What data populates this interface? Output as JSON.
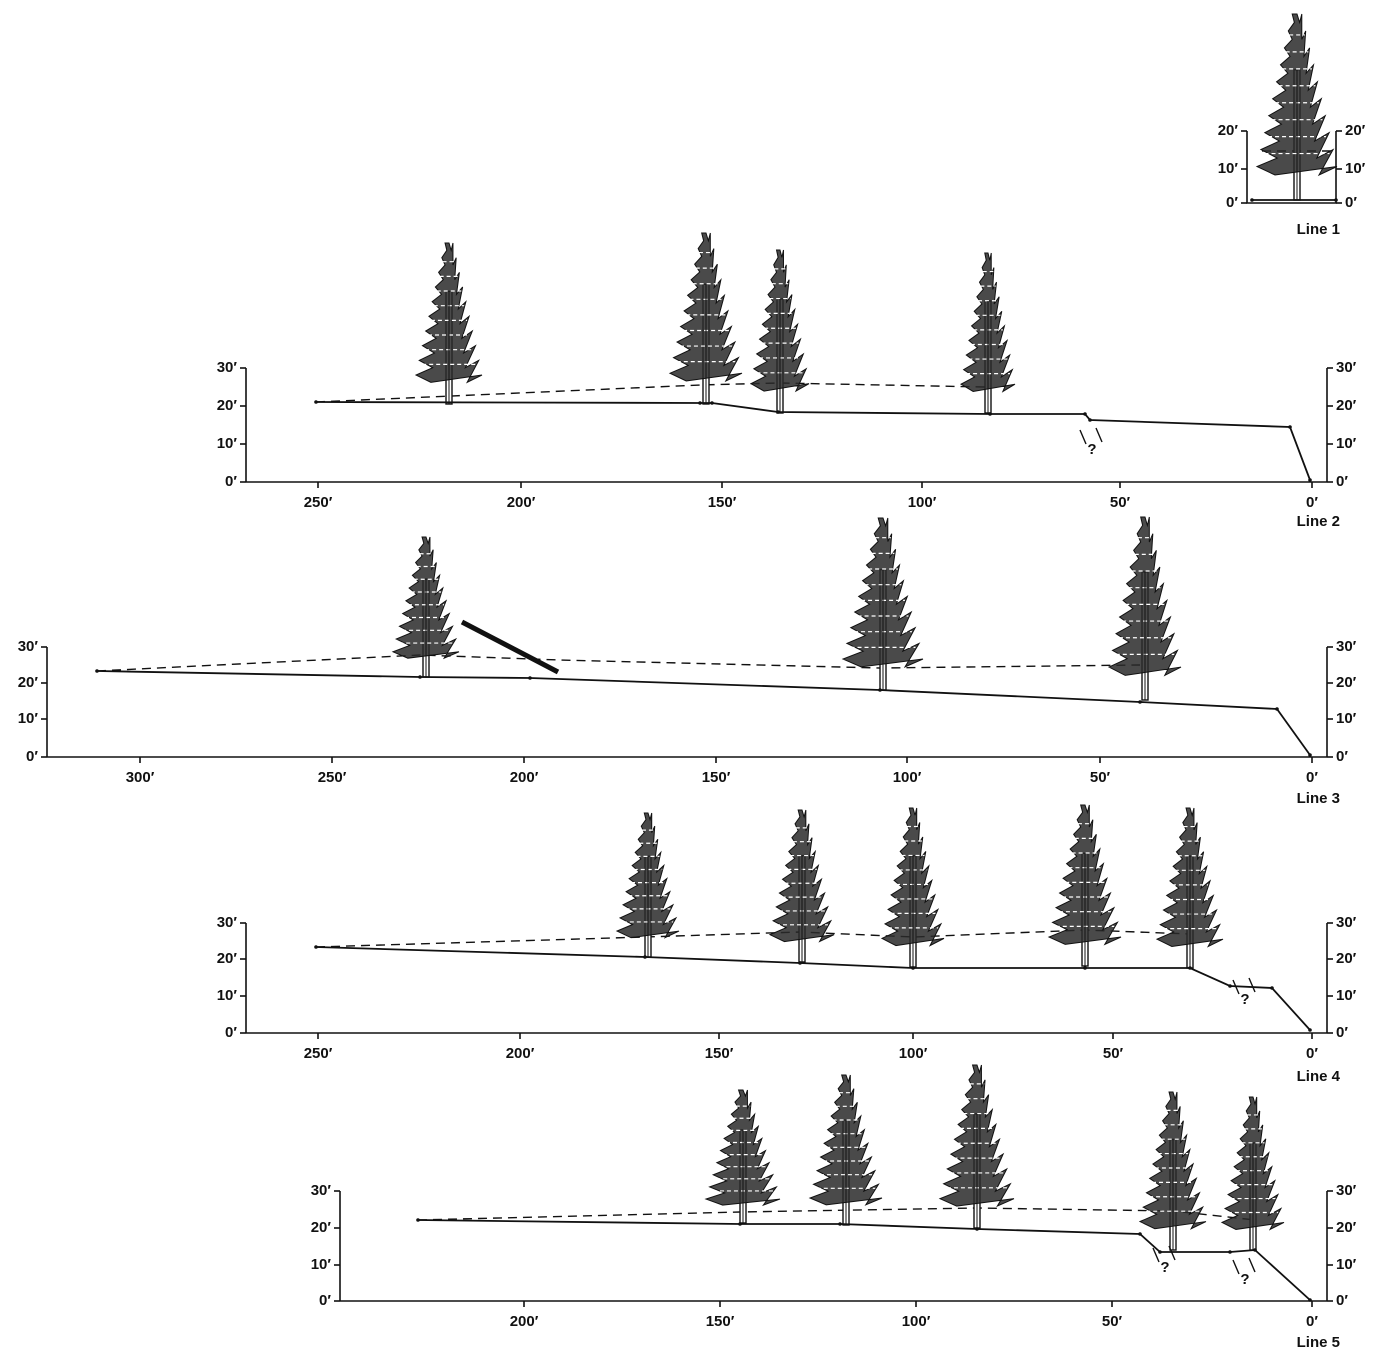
{
  "panels": [
    {
      "label": "Line 1",
      "y_ticks_left": [
        "0′",
        "10′",
        "20′"
      ],
      "y_ticks_right": [
        "0′",
        "10′",
        "20′"
      ],
      "x_ticks": [],
      "fault_marks": []
    },
    {
      "label": "Line 2",
      "y_ticks_left": [
        "0′",
        "10′",
        "20′",
        "30′"
      ],
      "y_ticks_right": [
        "0′",
        "10′",
        "20′",
        "30′"
      ],
      "x_ticks": [
        "250′",
        "200′",
        "150′",
        "100′",
        "50′",
        "0′"
      ],
      "fault_marks": [
        "?"
      ]
    },
    {
      "label": "Line 3",
      "y_ticks_left": [
        "0′",
        "10′",
        "20′",
        "30′"
      ],
      "y_ticks_right": [
        "0′",
        "10′",
        "20′",
        "30′"
      ],
      "x_ticks": [
        "300′",
        "250′",
        "200′",
        "150′",
        "100′",
        "50′",
        "0′"
      ],
      "fault_marks": []
    },
    {
      "label": "Line 4",
      "y_ticks_left": [
        "0′",
        "10′",
        "20′",
        "30′"
      ],
      "y_ticks_right": [
        "0′",
        "10′",
        "20′",
        "30′"
      ],
      "x_ticks": [
        "250′",
        "200′",
        "150′",
        "100′",
        "50′",
        "0′"
      ],
      "fault_marks": [
        "?"
      ]
    },
    {
      "label": "Line 5",
      "y_ticks_left": [
        "0′",
        "10′",
        "20′",
        "30′"
      ],
      "y_ticks_right": [
        "0′",
        "10′",
        "20′",
        "30′"
      ],
      "x_ticks": [
        "200′",
        "150′",
        "100′",
        "50′",
        "0′"
      ],
      "fault_marks": [
        "?",
        "?"
      ]
    }
  ]
}
